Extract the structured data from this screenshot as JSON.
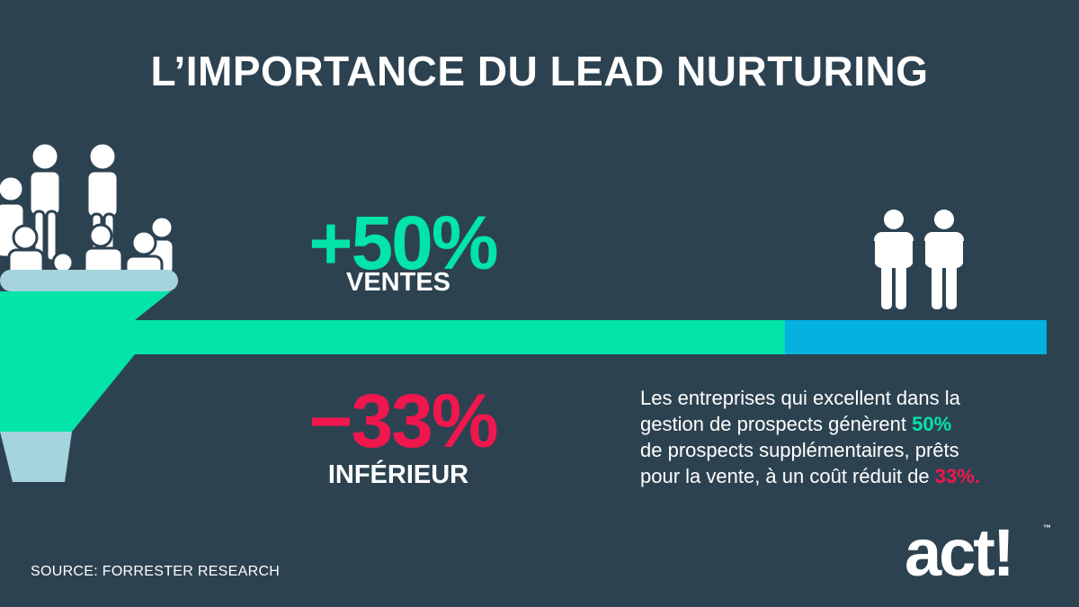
{
  "title": "L’IMPORTANCE DU LEAD NURTURING",
  "stats": {
    "sales": {
      "value": "+50%",
      "label": "VENTES"
    },
    "cost": {
      "value": "−33%",
      "label": "INFÉRIEUR"
    }
  },
  "description": {
    "line1": "Les entreprises qui excellent dans la",
    "line2_pre": "gestion de prospects génèrent ",
    "line2_hl": "50%",
    "line3": "de prospects supplémentaires, prêts",
    "line4_pre": "pour la vente, à un coût réduit de ",
    "line4_hl": "33%."
  },
  "source": "SOURCE: FORRESTER RESEARCH",
  "logo": {
    "text": "act!",
    "tm": "™"
  },
  "colors": {
    "background": "#2d4250",
    "green": "#03e4a8",
    "blue": "#05b1e0",
    "red": "#f0164e",
    "funnel_top": "#a6d4dc"
  }
}
